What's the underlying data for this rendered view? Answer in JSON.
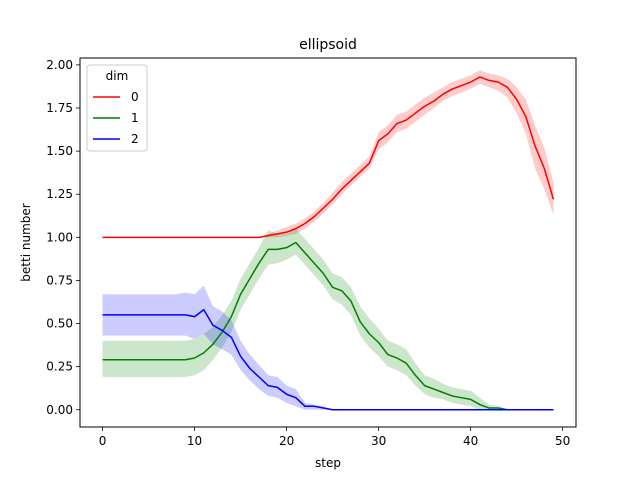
{
  "chart_data": {
    "type": "line",
    "title": "ellipsoid",
    "xlabel": "step",
    "ylabel": "betti number",
    "xlim": [
      -2.45,
      51.45
    ],
    "ylim": [
      -0.1,
      2.04
    ],
    "xticks": [
      0,
      10,
      20,
      30,
      40,
      50
    ],
    "yticks": [
      0.0,
      0.25,
      0.5,
      0.75,
      1.0,
      1.25,
      1.5,
      1.75,
      2.0
    ],
    "ytick_labels": [
      "0.00",
      "0.25",
      "0.50",
      "0.75",
      "1.00",
      "1.25",
      "1.50",
      "1.75",
      "2.00"
    ],
    "grid": false,
    "legend": {
      "title": "dim",
      "placement": "upper-left"
    },
    "x": [
      0,
      1,
      2,
      3,
      4,
      5,
      6,
      7,
      8,
      9,
      10,
      11,
      12,
      13,
      14,
      15,
      16,
      17,
      18,
      19,
      20,
      21,
      22,
      23,
      24,
      25,
      26,
      27,
      28,
      29,
      30,
      31,
      32,
      33,
      34,
      35,
      36,
      37,
      38,
      39,
      40,
      41,
      42,
      43,
      44,
      45,
      46,
      47,
      48,
      49
    ],
    "series": [
      {
        "name": "0",
        "color": "#ff0000",
        "band_color": "#ff0000",
        "values": [
          1,
          1,
          1,
          1,
          1,
          1,
          1,
          1,
          1,
          1,
          1,
          1,
          1,
          1,
          1,
          1,
          1,
          1,
          1.01,
          1.02,
          1.03,
          1.05,
          1.08,
          1.12,
          1.17,
          1.22,
          1.28,
          1.33,
          1.38,
          1.43,
          1.56,
          1.6,
          1.66,
          1.68,
          1.72,
          1.76,
          1.79,
          1.83,
          1.86,
          1.88,
          1.9,
          1.93,
          1.91,
          1.9,
          1.87,
          1.8,
          1.7,
          1.53,
          1.4,
          1.22
        ],
        "lower": [
          1,
          1,
          1,
          1,
          1,
          1,
          1,
          1,
          1,
          1,
          1,
          1,
          1,
          1,
          1,
          1,
          1,
          1,
          1,
          1,
          1.01,
          1.02,
          1.05,
          1.09,
          1.14,
          1.19,
          1.25,
          1.3,
          1.35,
          1.4,
          1.51,
          1.55,
          1.61,
          1.63,
          1.67,
          1.71,
          1.75,
          1.79,
          1.82,
          1.84,
          1.86,
          1.89,
          1.87,
          1.85,
          1.81,
          1.72,
          1.6,
          1.4,
          1.28,
          1.13
        ],
        "upper": [
          1,
          1,
          1,
          1,
          1,
          1,
          1,
          1,
          1,
          1,
          1,
          1,
          1,
          1,
          1,
          1,
          1,
          1,
          1.02,
          1.04,
          1.06,
          1.08,
          1.11,
          1.15,
          1.2,
          1.26,
          1.32,
          1.37,
          1.42,
          1.47,
          1.61,
          1.65,
          1.71,
          1.73,
          1.77,
          1.81,
          1.84,
          1.87,
          1.9,
          1.92,
          1.94,
          1.97,
          1.95,
          1.94,
          1.92,
          1.87,
          1.8,
          1.65,
          1.52,
          1.32
        ]
      },
      {
        "name": "1",
        "color": "#008000",
        "band_color": "#008000",
        "values": [
          0.29,
          0.29,
          0.29,
          0.29,
          0.29,
          0.29,
          0.29,
          0.29,
          0.29,
          0.29,
          0.3,
          0.33,
          0.38,
          0.45,
          0.54,
          0.67,
          0.76,
          0.85,
          0.93,
          0.93,
          0.94,
          0.97,
          0.91,
          0.85,
          0.79,
          0.71,
          0.69,
          0.63,
          0.51,
          0.44,
          0.39,
          0.32,
          0.3,
          0.27,
          0.2,
          0.14,
          0.12,
          0.1,
          0.08,
          0.07,
          0.06,
          0.03,
          0.01,
          0.01,
          0,
          0,
          0,
          0,
          0,
          0
        ],
        "lower": [
          0.19,
          0.19,
          0.19,
          0.19,
          0.19,
          0.19,
          0.19,
          0.19,
          0.19,
          0.19,
          0.2,
          0.23,
          0.29,
          0.36,
          0.45,
          0.58,
          0.67,
          0.76,
          0.84,
          0.85,
          0.87,
          0.9,
          0.84,
          0.78,
          0.72,
          0.64,
          0.61,
          0.55,
          0.43,
          0.36,
          0.31,
          0.25,
          0.23,
          0.2,
          0.14,
          0.09,
          0.07,
          0.06,
          0.04,
          0.03,
          0.02,
          0,
          0,
          0,
          0,
          0,
          0,
          0,
          0,
          0
        ],
        "upper": [
          0.4,
          0.4,
          0.4,
          0.4,
          0.4,
          0.4,
          0.4,
          0.4,
          0.4,
          0.4,
          0.41,
          0.44,
          0.48,
          0.55,
          0.63,
          0.76,
          0.85,
          0.94,
          1.04,
          1.02,
          1.02,
          1.05,
          0.99,
          0.93,
          0.87,
          0.79,
          0.77,
          0.71,
          0.6,
          0.53,
          0.47,
          0.4,
          0.38,
          0.35,
          0.27,
          0.2,
          0.18,
          0.15,
          0.13,
          0.12,
          0.11,
          0.07,
          0.03,
          0.02,
          0,
          0,
          0,
          0,
          0,
          0
        ]
      },
      {
        "name": "2",
        "color": "#0000ff",
        "band_color": "#0000ff",
        "values": [
          0.55,
          0.55,
          0.55,
          0.55,
          0.55,
          0.55,
          0.55,
          0.55,
          0.55,
          0.55,
          0.54,
          0.58,
          0.49,
          0.46,
          0.42,
          0.31,
          0.24,
          0.19,
          0.14,
          0.13,
          0.09,
          0.07,
          0.02,
          0.02,
          0.01,
          0,
          0,
          0,
          0,
          0,
          0,
          0,
          0,
          0,
          0,
          0,
          0,
          0,
          0,
          0,
          0,
          0,
          0,
          0,
          0,
          0,
          0,
          0,
          0,
          0
        ],
        "lower": [
          0.43,
          0.43,
          0.43,
          0.43,
          0.43,
          0.43,
          0.43,
          0.43,
          0.43,
          0.43,
          0.41,
          0.44,
          0.38,
          0.35,
          0.32,
          0.23,
          0.17,
          0.12,
          0.08,
          0.07,
          0.04,
          0.02,
          0,
          0,
          0,
          0,
          0,
          0,
          0,
          0,
          0,
          0,
          0,
          0,
          0,
          0,
          0,
          0,
          0,
          0,
          0,
          0,
          0,
          0,
          0,
          0,
          0,
          0,
          0,
          0
        ],
        "upper": [
          0.67,
          0.67,
          0.67,
          0.67,
          0.67,
          0.67,
          0.67,
          0.67,
          0.67,
          0.68,
          0.67,
          0.72,
          0.6,
          0.57,
          0.52,
          0.4,
          0.32,
          0.26,
          0.2,
          0.19,
          0.14,
          0.12,
          0.04,
          0.03,
          0.02,
          0,
          0,
          0,
          0,
          0,
          0,
          0,
          0,
          0,
          0,
          0,
          0,
          0,
          0,
          0,
          0,
          0,
          0,
          0,
          0,
          0,
          0,
          0,
          0,
          0
        ]
      }
    ]
  }
}
